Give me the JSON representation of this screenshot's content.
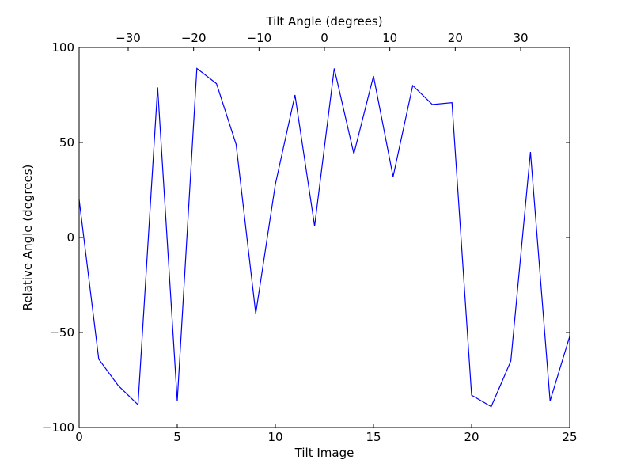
{
  "chart_data": {
    "type": "line",
    "xlabel": "Tilt Image",
    "ylabel": "Relative Angle (degrees)",
    "x2label": "Tilt Angle (degrees)",
    "xlim": [
      0,
      25
    ],
    "ylim": [
      -100,
      100
    ],
    "x2lim": [
      -37.5,
      37.5
    ],
    "xticks": [
      0,
      5,
      10,
      15,
      20,
      25
    ],
    "yticks": [
      -100,
      -50,
      0,
      50,
      100
    ],
    "x2ticks": [
      -30,
      -20,
      -10,
      0,
      10,
      20,
      30
    ],
    "xtick_labels": [
      "0",
      "5",
      "10",
      "15",
      "20",
      "25"
    ],
    "ytick_labels": [
      "−100",
      "−50",
      "0",
      "50",
      "100"
    ],
    "x2tick_labels": [
      "−30",
      "−20",
      "−10",
      "0",
      "10",
      "20",
      "30"
    ],
    "grid": false,
    "series": [
      {
        "color": "#0000ff",
        "x": [
          0,
          1,
          2,
          3,
          4,
          5,
          6,
          7,
          8,
          9,
          10,
          11,
          12,
          13,
          14,
          15,
          16,
          17,
          18,
          19,
          20,
          21,
          22,
          23,
          24,
          25
        ],
        "y": [
          20,
          -64,
          -78,
          -88,
          79,
          -86,
          89,
          81,
          49,
          -40,
          28,
          75,
          6,
          89,
          44,
          85,
          32,
          80,
          70,
          71,
          -83,
          -89,
          -65,
          45,
          -86,
          -52
        ]
      }
    ]
  }
}
